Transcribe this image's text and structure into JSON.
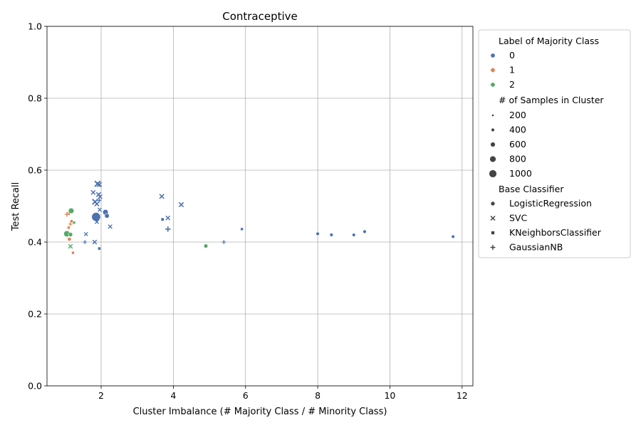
{
  "chart_data": {
    "type": "scatter",
    "title": "Contraceptive",
    "xlabel": "Cluster Imbalance (# Majority Class / # Minority Class)",
    "ylabel": "Test Recall",
    "xlim": [
      0.5,
      12.3
    ],
    "ylim": [
      0.0,
      1.0
    ],
    "xticks": [
      2,
      4,
      6,
      8,
      10,
      12
    ],
    "yticks": [
      0.0,
      0.2,
      0.4,
      0.6,
      0.8,
      1.0
    ],
    "grid": true,
    "legend_position": "outside-right",
    "legend": {
      "hue_title": "Label of Majority Class",
      "hue_entries": [
        {
          "label": "0",
          "color": "#4c72b0"
        },
        {
          "label": "1",
          "color": "#dd8452"
        },
        {
          "label": "2",
          "color": "#55a868"
        }
      ],
      "size_title": "# of Samples in Cluster",
      "size_entries": [
        "200",
        "400",
        "600",
        "800",
        "1000"
      ],
      "style_title": "Base Classifier",
      "style_entries": [
        {
          "label": "LogisticRegression",
          "marker": "circle"
        },
        {
          "label": "SVC",
          "marker": "x"
        },
        {
          "label": "KNeighborsClassifier",
          "marker": "square"
        },
        {
          "label": "GaussianNB",
          "marker": "plus"
        }
      ]
    },
    "points": [
      {
        "x": 1.86,
        "y": 0.47,
        "label": "0",
        "clf": "LogisticRegression",
        "n": 1050
      },
      {
        "x": 2.12,
        "y": 0.483,
        "label": "0",
        "clf": "LogisticRegression",
        "n": 500
      },
      {
        "x": 2.16,
        "y": 0.473,
        "label": "0",
        "clf": "LogisticRegression",
        "n": 350
      },
      {
        "x": 8.0,
        "y": 0.423,
        "label": "0",
        "clf": "LogisticRegression",
        "n": 150
      },
      {
        "x": 8.38,
        "y": 0.42,
        "label": "0",
        "clf": "LogisticRegression",
        "n": 150
      },
      {
        "x": 9.0,
        "y": 0.42,
        "label": "0",
        "clf": "LogisticRegression",
        "n": 140
      },
      {
        "x": 9.3,
        "y": 0.429,
        "label": "0",
        "clf": "LogisticRegression",
        "n": 150
      },
      {
        "x": 11.75,
        "y": 0.415,
        "label": "0",
        "clf": "LogisticRegression",
        "n": 140
      },
      {
        "x": 1.9,
        "y": 0.562,
        "label": "0",
        "clf": "SVC",
        "n": 500
      },
      {
        "x": 1.95,
        "y": 0.56,
        "label": "0",
        "clf": "SVC",
        "n": 350
      },
      {
        "x": 1.78,
        "y": 0.538,
        "label": "0",
        "clf": "SVC",
        "n": 280
      },
      {
        "x": 1.93,
        "y": 0.532,
        "label": "0",
        "clf": "SVC",
        "n": 320
      },
      {
        "x": 1.97,
        "y": 0.526,
        "label": "0",
        "clf": "SVC",
        "n": 260
      },
      {
        "x": 1.83,
        "y": 0.512,
        "label": "0",
        "clf": "SVC",
        "n": 450
      },
      {
        "x": 1.88,
        "y": 0.506,
        "label": "0",
        "clf": "SVC",
        "n": 300
      },
      {
        "x": 1.96,
        "y": 0.49,
        "label": "0",
        "clf": "SVC",
        "n": 200
      },
      {
        "x": 1.88,
        "y": 0.456,
        "label": "0",
        "clf": "SVC",
        "n": 180
      },
      {
        "x": 2.25,
        "y": 0.443,
        "label": "0",
        "clf": "SVC",
        "n": 220
      },
      {
        "x": 1.58,
        "y": 0.422,
        "label": "0",
        "clf": "SVC",
        "n": 180
      },
      {
        "x": 1.82,
        "y": 0.4,
        "label": "0",
        "clf": "SVC",
        "n": 250
      },
      {
        "x": 3.68,
        "y": 0.527,
        "label": "0",
        "clf": "SVC",
        "n": 320
      },
      {
        "x": 4.22,
        "y": 0.504,
        "label": "0",
        "clf": "SVC",
        "n": 320
      },
      {
        "x": 3.85,
        "y": 0.467,
        "label": "0",
        "clf": "SVC",
        "n": 260
      },
      {
        "x": 1.95,
        "y": 0.382,
        "label": "0",
        "clf": "KNeighborsClassifier",
        "n": 180
      },
      {
        "x": 3.7,
        "y": 0.463,
        "label": "0",
        "clf": "KNeighborsClassifier",
        "n": 200
      },
      {
        "x": 5.9,
        "y": 0.436,
        "label": "0",
        "clf": "KNeighborsClassifier",
        "n": 120
      },
      {
        "x": 1.95,
        "y": 0.516,
        "label": "0",
        "clf": "GaussianNB",
        "n": 200
      },
      {
        "x": 1.55,
        "y": 0.4,
        "label": "0",
        "clf": "GaussianNB",
        "n": 160
      },
      {
        "x": 3.85,
        "y": 0.436,
        "label": "0",
        "clf": "GaussianNB",
        "n": 350
      },
      {
        "x": 5.4,
        "y": 0.4,
        "label": "0",
        "clf": "GaussianNB",
        "n": 160
      },
      {
        "x": 1.12,
        "y": 0.408,
        "label": "1",
        "clf": "LogisticRegression",
        "n": 200
      },
      {
        "x": 1.18,
        "y": 0.458,
        "label": "1",
        "clf": "KNeighborsClassifier",
        "n": 140
      },
      {
        "x": 1.1,
        "y": 0.44,
        "label": "1",
        "clf": "KNeighborsClassifier",
        "n": 140
      },
      {
        "x": 1.22,
        "y": 0.37,
        "label": "1",
        "clf": "KNeighborsClassifier",
        "n": 130
      },
      {
        "x": 1.05,
        "y": 0.477,
        "label": "1",
        "clf": "GaussianNB",
        "n": 220
      },
      {
        "x": 1.12,
        "y": 0.481,
        "label": "1",
        "clf": "GaussianNB",
        "n": 200
      },
      {
        "x": 1.15,
        "y": 0.45,
        "label": "1",
        "clf": "GaussianNB",
        "n": 160
      },
      {
        "x": 1.17,
        "y": 0.487,
        "label": "2",
        "clf": "LogisticRegression",
        "n": 500
      },
      {
        "x": 1.05,
        "y": 0.423,
        "label": "2",
        "clf": "LogisticRegression",
        "n": 600
      },
      {
        "x": 1.15,
        "y": 0.421,
        "label": "2",
        "clf": "LogisticRegression",
        "n": 300
      },
      {
        "x": 4.9,
        "y": 0.389,
        "label": "2",
        "clf": "LogisticRegression",
        "n": 250
      },
      {
        "x": 1.15,
        "y": 0.388,
        "label": "2",
        "clf": "SVC",
        "n": 250
      },
      {
        "x": 1.25,
        "y": 0.454,
        "label": "2",
        "clf": "KNeighborsClassifier",
        "n": 120
      }
    ]
  }
}
